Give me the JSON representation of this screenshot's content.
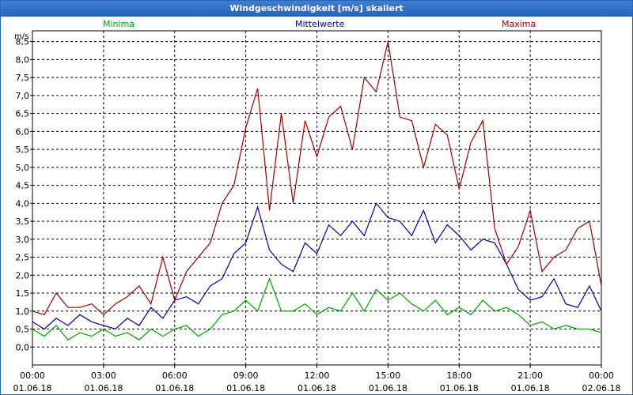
{
  "window": {
    "title": "Windgeschwindigkeit [m/s] skaliert"
  },
  "chart_data": {
    "type": "line",
    "title": "Windgeschwindigkeit [m/s] skaliert",
    "ylabel": "m/s",
    "ylim": [
      -0.5,
      8.8
    ],
    "xlim_hours": [
      0,
      24
    ],
    "y_ticks": [
      "8,5",
      "8,0",
      "7,5",
      "7,0",
      "6,5",
      "6,0",
      "5,5",
      "5,0",
      "4,5",
      "4,0",
      "3,5",
      "3,0",
      "2,5",
      "2,0",
      "1,5",
      "1,0",
      "0,5",
      "0,0"
    ],
    "y_tick_values": [
      8.5,
      8.0,
      7.5,
      7.0,
      6.5,
      6.0,
      5.5,
      5.0,
      4.5,
      4.0,
      3.5,
      3.0,
      2.5,
      2.0,
      1.5,
      1.0,
      0.5,
      0.0
    ],
    "x_ticks": [
      {
        "hour": 0,
        "time": "00:00",
        "date": "01.06.18"
      },
      {
        "hour": 3,
        "time": "03:00",
        "date": "01.06.18"
      },
      {
        "hour": 6,
        "time": "06:00",
        "date": "01.06.18"
      },
      {
        "hour": 9,
        "time": "09:00",
        "date": "01.06.18"
      },
      {
        "hour": 12,
        "time": "12:00",
        "date": "01.06.18"
      },
      {
        "hour": 15,
        "time": "15:00",
        "date": "01.06.18"
      },
      {
        "hour": 18,
        "time": "18:00",
        "date": "01.06.18"
      },
      {
        "hour": 21,
        "time": "21:00",
        "date": "01.06.18"
      },
      {
        "hour": 24,
        "time": "00:00",
        "date": "02.06.18"
      }
    ],
    "grid": true,
    "series": [
      {
        "name": "Minima",
        "color": "#00a000",
        "x": [
          0,
          0.5,
          1,
          1.5,
          2,
          2.5,
          3,
          3.5,
          4,
          4.5,
          5,
          5.5,
          6,
          6.5,
          7,
          7.5,
          8,
          8.5,
          9,
          9.5,
          10,
          10.5,
          11,
          11.5,
          12,
          12.5,
          13,
          13.5,
          14,
          14.5,
          15,
          15.5,
          16,
          16.5,
          17,
          17.5,
          18,
          18.5,
          19,
          19.5,
          20,
          20.5,
          21,
          21.5,
          22,
          22.5,
          23,
          23.5,
          24
        ],
        "values": [
          0.5,
          0.3,
          0.6,
          0.2,
          0.4,
          0.3,
          0.5,
          0.3,
          0.4,
          0.2,
          0.5,
          0.3,
          0.5,
          0.6,
          0.3,
          0.5,
          0.9,
          1.0,
          1.3,
          1.0,
          1.9,
          1.0,
          1.0,
          1.2,
          0.9,
          1.1,
          1.0,
          1.5,
          1.0,
          1.6,
          1.3,
          1.5,
          1.2,
          1.0,
          1.3,
          0.9,
          1.1,
          0.9,
          1.3,
          1.0,
          1.1,
          0.9,
          0.6,
          0.7,
          0.5,
          0.6,
          0.5,
          0.5,
          0.4
        ]
      },
      {
        "name": "Mittelwerte",
        "color": "#0000a0",
        "x": [
          0,
          0.5,
          1,
          1.5,
          2,
          2.5,
          3,
          3.5,
          4,
          4.5,
          5,
          5.5,
          6,
          6.5,
          7,
          7.5,
          8,
          8.5,
          9,
          9.5,
          10,
          10.5,
          11,
          11.5,
          12,
          12.5,
          13,
          13.5,
          14,
          14.5,
          15,
          15.5,
          16,
          16.5,
          17,
          17.5,
          18,
          18.5,
          19,
          19.5,
          20,
          20.5,
          21,
          21.5,
          22,
          22.5,
          23,
          23.5,
          24
        ],
        "values": [
          0.7,
          0.5,
          0.8,
          0.6,
          0.9,
          0.7,
          0.6,
          0.5,
          0.8,
          0.6,
          1.1,
          0.8,
          1.3,
          1.4,
          1.2,
          1.7,
          1.9,
          2.6,
          2.9,
          3.9,
          2.7,
          2.3,
          2.1,
          2.9,
          2.6,
          3.4,
          3.1,
          3.5,
          3.1,
          4.0,
          3.6,
          3.5,
          3.1,
          3.8,
          2.9,
          3.4,
          3.1,
          2.7,
          3.0,
          2.9,
          2.3,
          1.6,
          1.3,
          1.4,
          1.9,
          1.2,
          1.1,
          1.7,
          1.0
        ]
      },
      {
        "name": "Maxima",
        "color": "#a00000",
        "x": [
          0,
          0.5,
          1,
          1.5,
          2,
          2.5,
          3,
          3.5,
          4,
          4.5,
          5,
          5.5,
          6,
          6.5,
          7,
          7.5,
          8,
          8.5,
          9,
          9.5,
          10,
          10.5,
          11,
          11.5,
          12,
          12.5,
          13,
          13.5,
          14,
          14.5,
          15,
          15.5,
          16,
          16.5,
          17,
          17.5,
          18,
          18.5,
          19,
          19.5,
          20,
          20.5,
          21,
          21.5,
          22,
          22.5,
          23,
          23.5,
          24
        ],
        "values": [
          1.0,
          0.9,
          1.5,
          1.1,
          1.1,
          1.2,
          0.9,
          1.2,
          1.4,
          1.7,
          1.2,
          2.5,
          1.3,
          2.1,
          2.5,
          2.9,
          4.0,
          4.5,
          6.1,
          7.2,
          3.8,
          6.5,
          4.0,
          6.3,
          5.3,
          6.4,
          6.7,
          5.5,
          7.5,
          7.1,
          8.5,
          6.4,
          6.3,
          5.0,
          6.2,
          5.9,
          4.4,
          5.7,
          6.3,
          3.3,
          2.3,
          2.8,
          3.8,
          2.1,
          2.5,
          2.7,
          3.3,
          3.5,
          1.7
        ]
      }
    ]
  }
}
